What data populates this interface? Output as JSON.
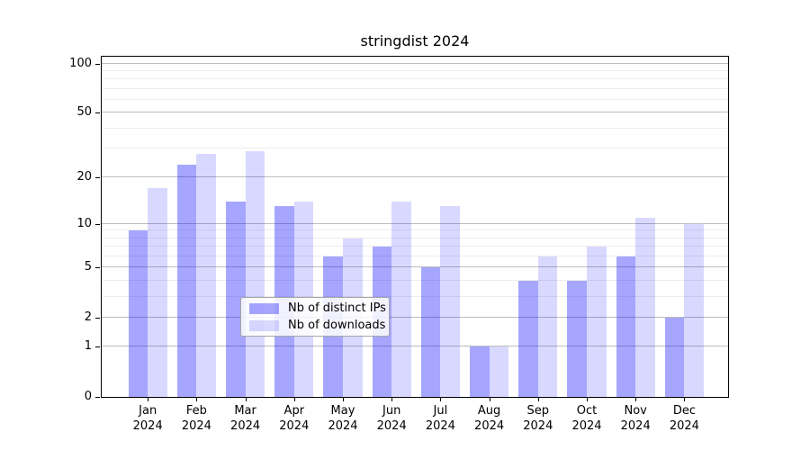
{
  "title": "stringdist 2024",
  "chart_data": {
    "type": "bar",
    "title": "stringdist 2024",
    "categories": [
      {
        "month": "Jan",
        "year": "2024"
      },
      {
        "month": "Feb",
        "year": "2024"
      },
      {
        "month": "Mar",
        "year": "2024"
      },
      {
        "month": "Apr",
        "year": "2024"
      },
      {
        "month": "May",
        "year": "2024"
      },
      {
        "month": "Jun",
        "year": "2024"
      },
      {
        "month": "Jul",
        "year": "2024"
      },
      {
        "month": "Aug",
        "year": "2024"
      },
      {
        "month": "Sep",
        "year": "2024"
      },
      {
        "month": "Oct",
        "year": "2024"
      },
      {
        "month": "Nov",
        "year": "2024"
      },
      {
        "month": "Dec",
        "year": "2024"
      }
    ],
    "series": [
      {
        "key": "distinct-ips",
        "name": "Nb of distinct IPs",
        "color": "rgba(0,0,255,0.35)",
        "values": [
          9,
          24,
          14,
          13,
          6,
          7,
          5,
          1,
          4,
          4,
          6,
          2
        ]
      },
      {
        "key": "downloads",
        "name": "Nb of downloads",
        "color": "rgba(0,0,255,0.15)",
        "values": [
          17,
          28,
          29,
          14,
          8,
          14,
          13,
          1,
          6,
          7,
          11,
          10
        ]
      }
    ],
    "y_axis": {
      "scale": "log1p",
      "ticks": [
        0,
        1,
        2,
        5,
        10,
        20,
        50,
        100
      ],
      "minor_ticks": [
        3,
        4,
        6,
        7,
        8,
        9,
        30,
        40,
        60,
        70,
        80,
        90
      ],
      "max": 110
    },
    "legend_position": "lower center",
    "grid": "horizontal major+minor"
  }
}
